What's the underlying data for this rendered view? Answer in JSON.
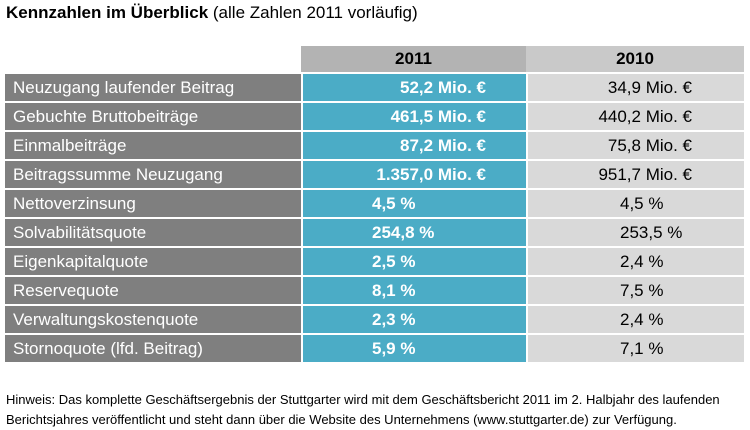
{
  "title": {
    "bold": "Kennzahlen im Überblick",
    "normal": " (alle Zahlen 2011 vorläufig)"
  },
  "table": {
    "headers": [
      "2011",
      "2010"
    ],
    "rows": [
      {
        "label": "Neuzugang laufender Beitrag",
        "v2011": "52,2 Mio. €",
        "v2010": "34,9 Mio. €",
        "kind": "money"
      },
      {
        "label": "Gebuchte Bruttobeiträge",
        "v2011": "461,5 Mio. €",
        "v2010": "440,2 Mio. €",
        "kind": "money"
      },
      {
        "label": "Einmalbeiträge",
        "v2011": "87,2 Mio. €",
        "v2010": "75,8 Mio. €",
        "kind": "money"
      },
      {
        "label": "Beitragssumme Neuzugang",
        "v2011": "1.357,0 Mio. €",
        "v2010": "951,7 Mio. €",
        "kind": "money"
      },
      {
        "label": "Nettoverzinsung",
        "v2011": "4,5 %",
        "v2010": "4,5 %",
        "kind": "pct"
      },
      {
        "label": "Solvabilitätsquote",
        "v2011": "254,8 %",
        "v2010": "253,5 %",
        "kind": "pct"
      },
      {
        "label": "Eigenkapitalquote",
        "v2011": "2,5 %",
        "v2010": "2,4 %",
        "kind": "pct"
      },
      {
        "label": "Reservequote",
        "v2011": "8,1 %",
        "v2010": "7,5 %",
        "kind": "pct"
      },
      {
        "label": "Verwaltungskostenquote",
        "v2011": "2,3 %",
        "v2010": "2,4 %",
        "kind": "pct"
      },
      {
        "label": "Stornoquote (lfd. Beitrag)",
        "v2011": "5,9 %",
        "v2010": "7,1 %",
        "kind": "pct"
      }
    ]
  },
  "note": {
    "line1": "Hinweis: Das komplette Geschäftsergebnis der Stuttgarter wird mit dem Geschäftsbericht 2011 im 2. Halbjahr des laufenden",
    "line2": "Berichtsjahres veröffentlicht und steht dann über die Website des Unternehmens (www.stuttgarter.de) zur Verfügung."
  },
  "colors": {
    "label_bg": "#7f7f7f",
    "accent_2011": "#4bacc6",
    "bg_2010": "#d9d9d9",
    "header_bg": "#c0c0c0"
  }
}
